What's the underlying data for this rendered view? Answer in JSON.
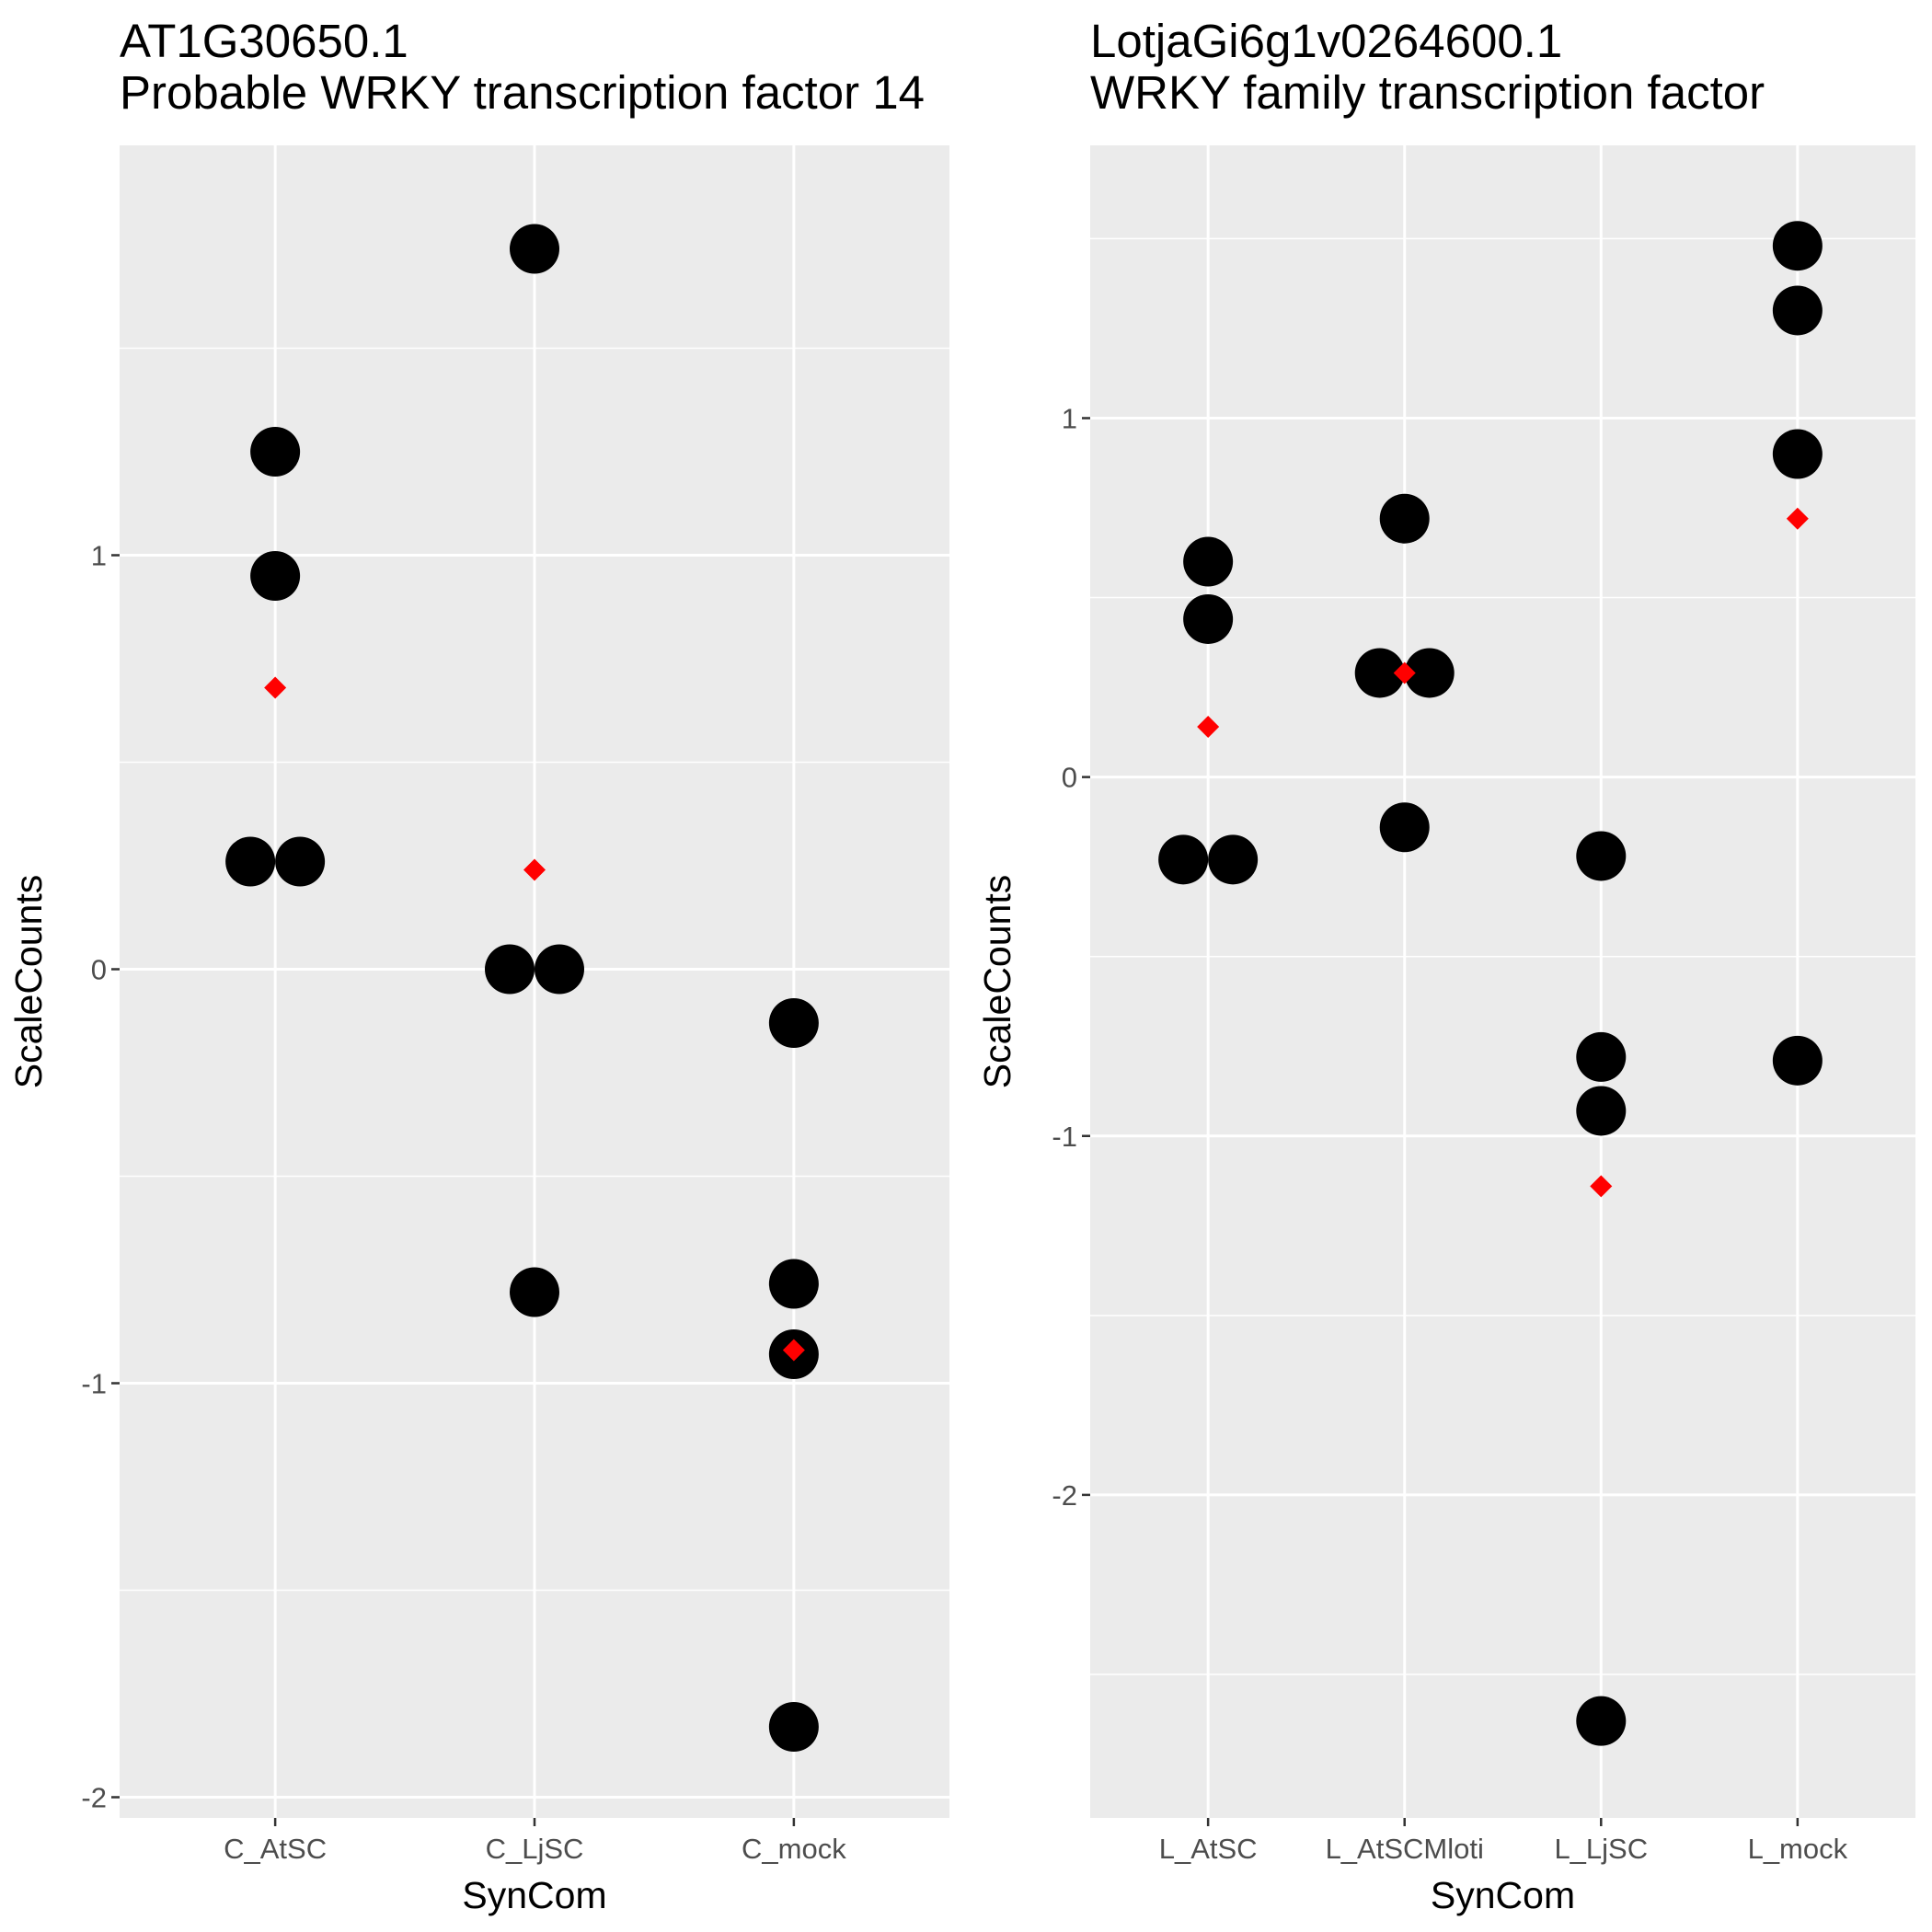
{
  "chart_data": [
    {
      "type": "scatter",
      "title": "AT1G30650.1\nProbable WRKY transcription factor 14",
      "xlabel": "SynCom",
      "ylabel": "ScaleCounts",
      "categories": [
        "C_AtSC",
        "C_LjSC",
        "C_mock"
      ],
      "ylim": [
        -2.05,
        1.99
      ],
      "yticks": [
        -2,
        -1,
        0,
        1
      ],
      "ytick_labels": [
        "-2",
        "-1",
        "0",
        "1"
      ],
      "grid": true,
      "points": [
        {
          "category": "C_AtSC",
          "y": 1.25
        },
        {
          "category": "C_AtSC",
          "y": 0.95
        },
        {
          "category": "C_AtSC",
          "y": 0.26
        },
        {
          "category": "C_AtSC",
          "y": 0.26
        },
        {
          "category": "C_LjSC",
          "y": 1.74
        },
        {
          "category": "C_LjSC",
          "y": 0.0
        },
        {
          "category": "C_LjSC",
          "y": 0.0
        },
        {
          "category": "C_LjSC",
          "y": -0.78
        },
        {
          "category": "C_mock",
          "y": -0.13
        },
        {
          "category": "C_mock",
          "y": -0.76
        },
        {
          "category": "C_mock",
          "y": -0.93
        },
        {
          "category": "C_mock",
          "y": -1.83
        }
      ],
      "means": [
        {
          "category": "C_AtSC",
          "y": 0.68
        },
        {
          "category": "C_LjSC",
          "y": 0.24
        },
        {
          "category": "C_mock",
          "y": -0.92
        }
      ],
      "colors": {
        "points": "#000000",
        "means": "#ff0000",
        "panel": "#ebebeb"
      }
    },
    {
      "type": "scatter",
      "title": "LotjaGi6g1v0264600.1\nWRKY family transcription factor",
      "xlabel": "SynCom",
      "ylabel": "ScaleCounts",
      "categories": [
        "L_AtSC",
        "L_AtSCMloti",
        "L_LjSC",
        "L_mock"
      ],
      "ylim": [
        -2.9,
        1.76
      ],
      "yticks": [
        -2,
        -1,
        0,
        1
      ],
      "ytick_labels": [
        "-2",
        "-1",
        "0",
        "1"
      ],
      "grid": true,
      "points": [
        {
          "category": "L_AtSC",
          "y": 0.6
        },
        {
          "category": "L_AtSC",
          "y": 0.44
        },
        {
          "category": "L_AtSC",
          "y": -0.23
        },
        {
          "category": "L_AtSC",
          "y": -0.23
        },
        {
          "category": "L_AtSCMloti",
          "y": 0.72
        },
        {
          "category": "L_AtSCMloti",
          "y": 0.29
        },
        {
          "category": "L_AtSCMloti",
          "y": 0.29
        },
        {
          "category": "L_AtSCMloti",
          "y": -0.14
        },
        {
          "category": "L_LjSC",
          "y": -0.22
        },
        {
          "category": "L_LjSC",
          "y": -0.78
        },
        {
          "category": "L_LjSC",
          "y": -0.93
        },
        {
          "category": "L_LjSC",
          "y": -2.63
        },
        {
          "category": "L_mock",
          "y": 1.48
        },
        {
          "category": "L_mock",
          "y": 1.3
        },
        {
          "category": "L_mock",
          "y": 0.9
        },
        {
          "category": "L_mock",
          "y": -0.79
        }
      ],
      "means": [
        {
          "category": "L_AtSC",
          "y": 0.14
        },
        {
          "category": "L_AtSCMloti",
          "y": 0.29
        },
        {
          "category": "L_LjSC",
          "y": -1.14
        },
        {
          "category": "L_mock",
          "y": 0.72
        }
      ],
      "colors": {
        "points": "#000000",
        "means": "#ff0000",
        "panel": "#ebebeb"
      }
    }
  ]
}
